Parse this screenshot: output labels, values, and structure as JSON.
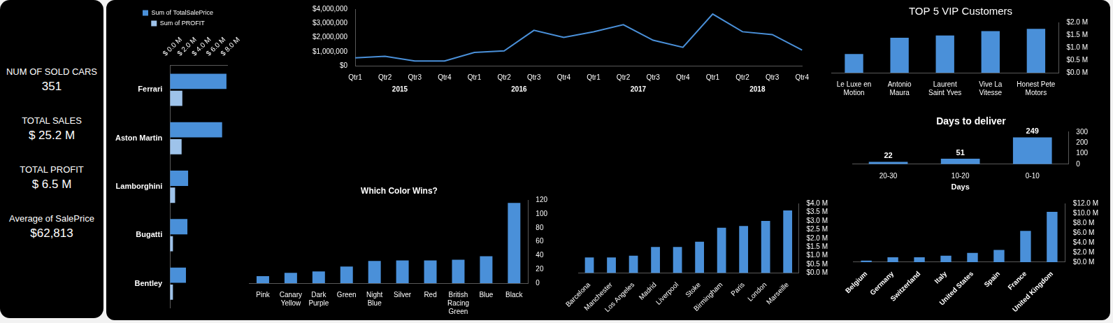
{
  "kpis": [
    {
      "label": "NUM OF SOLD CARS",
      "value": "351"
    },
    {
      "label": "TOTAL SALES",
      "value": "$ 25.2 M"
    },
    {
      "label": "TOTAL PROFIT",
      "value": "$ 6.5 M"
    },
    {
      "label": "Average of SalePrice",
      "value": "$62,813"
    }
  ],
  "chart_data": [
    {
      "type": "bar",
      "orientation": "horizontal",
      "categories": [
        "Ferrari",
        "Aston Martin",
        "Lamborghini",
        "Bugatti",
        "Bentley"
      ],
      "series": [
        {
          "name": "Sum of TotalSalePrice",
          "color": "#4a90d9",
          "values": [
            7.8,
            7.2,
            2.5,
            2.4,
            2.2
          ]
        },
        {
          "name": "Sum of PROFIT",
          "color": "#9ec3ea",
          "values": [
            1.7,
            1.6,
            0.7,
            0.4,
            0.4
          ]
        }
      ],
      "xlim": [
        0,
        8
      ],
      "xticks": [
        {
          "value": 0,
          "label": "$ 0.0 M"
        },
        {
          "value": 2,
          "label": "$ 2.0 M"
        },
        {
          "value": 4,
          "label": "$ 4.0 M"
        },
        {
          "value": 6,
          "label": "$ 6.0 M"
        },
        {
          "value": 8,
          "label": "$ 8.0 M"
        }
      ],
      "grid": false,
      "legend": "top"
    },
    {
      "type": "line",
      "category_groups": [
        {
          "name": "2015",
          "categories": [
            "Qtr1",
            "Qtr2",
            "Qtr3",
            "Qtr4"
          ]
        },
        {
          "name": "2016",
          "categories": [
            "Qtr1",
            "Qtr2",
            "Qtr3",
            "Qtr4"
          ]
        },
        {
          "name": "2017",
          "categories": [
            "Qtr1",
            "Qtr2",
            "Qtr3",
            "Qtr4"
          ]
        },
        {
          "name": "2018",
          "categories": [
            "Qtr1",
            "Qtr2",
            "Qtr3",
            "Qtr4"
          ]
        }
      ],
      "values": [
        560000,
        670000,
        330000,
        330000,
        940000,
        1050000,
        2500000,
        2000000,
        2400000,
        2900000,
        1800000,
        1300000,
        3650000,
        2400000,
        2200000,
        1100000
      ],
      "color": "#4a90d9",
      "ylim": [
        0,
        4000000
      ],
      "yticks": [
        {
          "value": 0,
          "label": "$0"
        },
        {
          "value": 1000000,
          "label": "$1,000,000"
        },
        {
          "value": 2000000,
          "label": "$2,000,000"
        },
        {
          "value": 3000000,
          "label": "$3,000,000"
        },
        {
          "value": 4000000,
          "label": "$4,000,000"
        }
      ],
      "grid": false
    },
    {
      "type": "bar",
      "title": "TOP 5 VIP Customers",
      "categories": [
        "Le Luxe en Motion",
        "Antonio Maura",
        "Laurent Saint Yves",
        "Vive La Vitesse",
        "Honest Pete Motors"
      ],
      "values": [
        0.74,
        1.39,
        1.48,
        1.65,
        1.74
      ],
      "color": "#4a90d9",
      "ylim": [
        0,
        2
      ],
      "yticks": [
        {
          "value": 0,
          "label": "$0.0 M"
        },
        {
          "value": 0.5,
          "label": "$0.5 M"
        },
        {
          "value": 1,
          "label": "$1.0 M"
        },
        {
          "value": 1.5,
          "label": "$1.5 M"
        },
        {
          "value": 2,
          "label": "$2.0 M"
        }
      ],
      "grid": false
    },
    {
      "type": "bar",
      "title": "Days to deliver",
      "x_label": "Days",
      "categories": [
        "20-30",
        "10-20",
        "0-10"
      ],
      "values": [
        22,
        51,
        249
      ],
      "color": "#4a90d9",
      "ylim": [
        0,
        300
      ],
      "yticks": [
        0,
        100,
        200,
        300
      ],
      "data_labels": true,
      "grid": false
    },
    {
      "type": "bar",
      "title": "Which Color Wins?",
      "categories": [
        "Pink",
        "Canary Yellow",
        "Dark Purple",
        "Green",
        "Night Blue",
        "Silver",
        "Red",
        "British Racing Green",
        "Blue",
        "Black"
      ],
      "values": [
        10,
        15,
        17,
        24,
        32,
        33,
        33,
        34,
        39,
        116
      ],
      "color": "#4a90d9",
      "ylim": [
        0,
        120
      ],
      "yticks": [
        0,
        20,
        40,
        60,
        80,
        100,
        120
      ],
      "grid": false
    },
    {
      "type": "bar",
      "categories": [
        "Barcelona",
        "Manchester",
        "Los Angeles",
        "Madrid",
        "Liverpool",
        "Stoke",
        "Birmingham",
        "Paris",
        "London",
        "Marseille"
      ],
      "values": [
        0.9,
        0.9,
        1.0,
        1.5,
        1.5,
        1.8,
        2.6,
        2.7,
        3.0,
        3.6
      ],
      "color": "#4a90d9",
      "ylim": [
        0,
        4
      ],
      "yticks": [
        {
          "value": 0,
          "label": "$0.0 M"
        },
        {
          "value": 0.5,
          "label": "$0.5 M"
        },
        {
          "value": 1,
          "label": "$1.0 M"
        },
        {
          "value": 1.5,
          "label": "$1.5 M"
        },
        {
          "value": 2,
          "label": "$2.0 M"
        },
        {
          "value": 2.5,
          "label": "$2.5 M"
        },
        {
          "value": 3,
          "label": "$3.0 M"
        },
        {
          "value": 3.5,
          "label": "$3.5 M"
        },
        {
          "value": 4,
          "label": "$4.0 M"
        }
      ],
      "grid": false
    },
    {
      "type": "bar",
      "categories": [
        "Belgium",
        "Germany",
        "Switzerland",
        "Italy",
        "United States",
        "Spain",
        "France",
        "United Kingdom"
      ],
      "values": [
        0.3,
        1.0,
        1.0,
        1.3,
        1.9,
        2.5,
        6.4,
        10.3
      ],
      "color": "#4a90d9",
      "ylim": [
        0,
        12
      ],
      "yticks": [
        {
          "value": 0,
          "label": "$0.0 M"
        },
        {
          "value": 2,
          "label": "$2.0 M"
        },
        {
          "value": 4,
          "label": "$4.0 M"
        },
        {
          "value": 6,
          "label": "$6.0 M"
        },
        {
          "value": 8,
          "label": "$8.0 M"
        },
        {
          "value": 10,
          "label": "$10.0 M"
        },
        {
          "value": 12,
          "label": "$12.0 M"
        }
      ],
      "grid": false
    }
  ]
}
